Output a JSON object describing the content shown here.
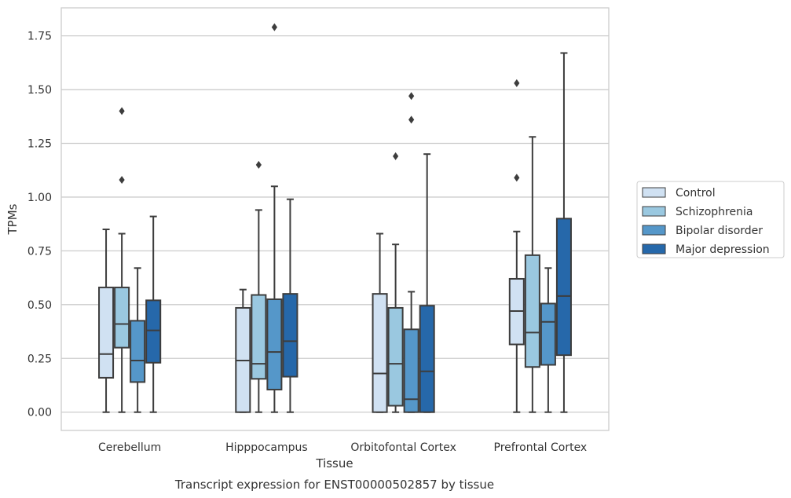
{
  "caption": "Transcript expression for ENST00000502857 by tissue",
  "chart_data": {
    "type": "box",
    "xlabel": "Tissue",
    "ylabel": "TPMs",
    "ylim": [
      -0.085,
      1.88
    ],
    "yticks": [
      "0.00",
      "0.25",
      "0.50",
      "0.75",
      "1.00",
      "1.25",
      "1.50",
      "1.75"
    ],
    "ytick_values": [
      0,
      0.25,
      0.5,
      0.75,
      1.0,
      1.25,
      1.5,
      1.75
    ],
    "grid": "horizontal",
    "legend_position": "right",
    "categories": [
      "Cerebellum",
      "Hipppocampus",
      "Orbitofontal Cortex",
      "Prefrontal Cortex"
    ],
    "series": [
      {
        "name": "Control",
        "color": "#d0e1f2",
        "boxes": [
          {
            "whislo": 0.0,
            "q1": 0.16,
            "med": 0.27,
            "q3": 0.58,
            "whishi": 0.85,
            "fliers": []
          },
          {
            "whislo": 0.0,
            "q1": 0.0,
            "med": 0.24,
            "q3": 0.485,
            "whishi": 0.57,
            "fliers": []
          },
          {
            "whislo": 0.0,
            "q1": 0.0,
            "med": 0.18,
            "q3": 0.55,
            "whishi": 0.83,
            "fliers": []
          },
          {
            "whislo": 0.0,
            "q1": 0.315,
            "med": 0.47,
            "q3": 0.62,
            "whishi": 0.84,
            "fliers": [
              1.09,
              1.53
            ]
          }
        ]
      },
      {
        "name": "Schizophrenia",
        "color": "#9ac8e0",
        "boxes": [
          {
            "whislo": 0.0,
            "q1": 0.3,
            "med": 0.41,
            "q3": 0.58,
            "whishi": 0.83,
            "fliers": [
              1.08,
              1.4
            ]
          },
          {
            "whislo": 0.0,
            "q1": 0.155,
            "med": 0.225,
            "q3": 0.545,
            "whishi": 0.94,
            "fliers": [
              1.15
            ]
          },
          {
            "whislo": 0.0,
            "q1": 0.03,
            "med": 0.225,
            "q3": 0.485,
            "whishi": 0.78,
            "fliers": [
              1.19
            ]
          },
          {
            "whislo": 0.0,
            "q1": 0.21,
            "med": 0.37,
            "q3": 0.73,
            "whishi": 1.28,
            "fliers": []
          }
        ]
      },
      {
        "name": "Bipolar disorder",
        "color": "#5597c9",
        "boxes": [
          {
            "whislo": 0.0,
            "q1": 0.14,
            "med": 0.24,
            "q3": 0.425,
            "whishi": 0.67,
            "fliers": []
          },
          {
            "whislo": 0.0,
            "q1": 0.105,
            "med": 0.28,
            "q3": 0.525,
            "whishi": 1.05,
            "fliers": [
              1.79
            ]
          },
          {
            "whislo": 0.0,
            "q1": 0.0,
            "med": 0.06,
            "q3": 0.385,
            "whishi": 0.56,
            "fliers": [
              1.36,
              1.47
            ]
          },
          {
            "whislo": 0.0,
            "q1": 0.22,
            "med": 0.42,
            "q3": 0.505,
            "whishi": 0.67,
            "fliers": []
          }
        ]
      },
      {
        "name": "Major depression",
        "color": "#2668aa",
        "boxes": [
          {
            "whislo": 0.0,
            "q1": 0.23,
            "med": 0.38,
            "q3": 0.52,
            "whishi": 0.91,
            "fliers": []
          },
          {
            "whislo": 0.0,
            "q1": 0.165,
            "med": 0.33,
            "q3": 0.55,
            "whishi": 0.99,
            "fliers": []
          },
          {
            "whislo": 0.0,
            "q1": 0.0,
            "med": 0.19,
            "q3": 0.495,
            "whishi": 1.2,
            "fliers": []
          },
          {
            "whislo": 0.0,
            "q1": 0.265,
            "med": 0.54,
            "q3": 0.9,
            "whishi": 1.67,
            "fliers": []
          }
        ]
      }
    ]
  }
}
